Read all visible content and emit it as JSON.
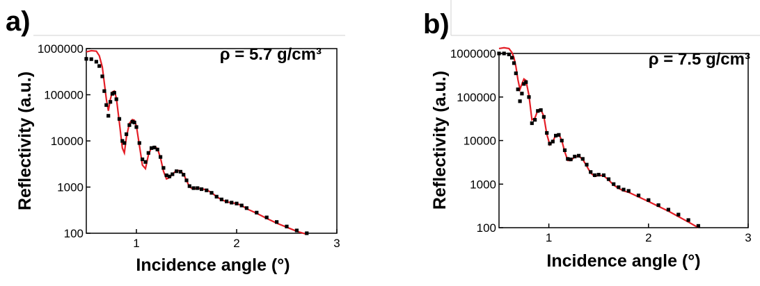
{
  "chart_data": [
    {
      "panel_label": "a)",
      "type": "scatter",
      "annotation": "ρ = 5.7 g/cm³",
      "xlabel": "Incidence angle (°)",
      "ylabel": "Reflectivity (a.u.)",
      "xlim": [
        0.5,
        3
      ],
      "ylim": [
        100,
        1000000
      ],
      "yscale": "log",
      "x_ticks": [
        1,
        2,
        3
      ],
      "y_ticks": [
        100,
        1000,
        10000,
        100000,
        1000000
      ],
      "x_tick_labels": [
        "1",
        "2",
        "3"
      ],
      "y_tick_labels": [
        "100",
        "1000",
        "10000",
        "100000",
        "1000000"
      ],
      "grid": false,
      "series": [
        {
          "role": "measured",
          "style": "markers",
          "color": "#000000",
          "x": [
            0.5,
            0.55,
            0.6,
            0.63,
            0.66,
            0.68,
            0.7,
            0.72,
            0.74,
            0.76,
            0.78,
            0.8,
            0.83,
            0.86,
            0.88,
            0.9,
            0.93,
            0.96,
            0.98,
            1.0,
            1.03,
            1.06,
            1.09,
            1.12,
            1.15,
            1.18,
            1.21,
            1.24,
            1.27,
            1.3,
            1.33,
            1.36,
            1.4,
            1.44,
            1.47,
            1.5,
            1.53,
            1.57,
            1.61,
            1.65,
            1.7,
            1.75,
            1.8,
            1.85,
            1.9,
            1.95,
            2.0,
            2.05,
            2.1,
            2.2,
            2.3,
            2.4,
            2.5,
            2.6,
            2.7
          ],
          "y": [
            600000,
            590000,
            520000,
            420000,
            250000,
            120000,
            60000,
            35000,
            70000,
            105000,
            110000,
            80000,
            30000,
            10000,
            9000,
            14000,
            22000,
            26000,
            25000,
            20000,
            9000,
            4000,
            3500,
            5500,
            7000,
            7200,
            6500,
            4500,
            2600,
            1800,
            1700,
            1900,
            2200,
            2150,
            1850,
            1400,
            1050,
            950,
            950,
            900,
            850,
            750,
            620,
            540,
            490,
            460,
            440,
            400,
            350,
            280,
            220,
            175,
            140,
            115,
            100
          ]
        },
        {
          "role": "fit",
          "style": "line",
          "color": "#e41e26",
          "x": [
            0.5,
            0.55,
            0.6,
            0.63,
            0.66,
            0.68,
            0.7,
            0.72,
            0.74,
            0.76,
            0.78,
            0.8,
            0.83,
            0.86,
            0.88,
            0.9,
            0.93,
            0.96,
            0.98,
            1.0,
            1.03,
            1.06,
            1.09,
            1.12,
            1.15,
            1.18,
            1.21,
            1.24,
            1.27,
            1.3,
            1.33,
            1.36,
            1.4,
            1.44,
            1.47,
            1.5,
            1.53,
            1.57,
            1.61,
            1.65,
            1.7,
            1.75,
            1.8,
            1.85,
            1.9,
            1.95,
            2.0,
            2.05,
            2.1,
            2.2,
            2.3,
            2.4,
            2.5,
            2.6,
            2.7
          ],
          "y": [
            850000,
            900000,
            880000,
            700000,
            400000,
            180000,
            80000,
            45000,
            80000,
            115000,
            120000,
            85000,
            25000,
            7000,
            5500,
            12000,
            24000,
            29000,
            28000,
            21000,
            8000,
            3000,
            2500,
            5000,
            7200,
            7600,
            6800,
            4300,
            2200,
            1500,
            1600,
            1900,
            2300,
            2250,
            1900,
            1400,
            1000,
            900,
            950,
            920,
            870,
            760,
            620,
            530,
            480,
            455,
            440,
            400,
            340,
            270,
            210,
            165,
            135,
            110,
            95
          ]
        }
      ]
    },
    {
      "panel_label": "b)",
      "type": "scatter",
      "annotation": "ρ = 7.5 g/cm³",
      "xlabel": "Incidence angle (°)",
      "ylabel": "Reflectivity (a.u.)",
      "xlim": [
        0.5,
        3
      ],
      "ylim": [
        100,
        1000000
      ],
      "yscale": "log",
      "x_ticks": [
        1,
        2,
        3
      ],
      "y_ticks": [
        100,
        1000,
        10000,
        100000,
        1000000
      ],
      "x_tick_labels": [
        "1",
        "2",
        "3"
      ],
      "y_tick_labels": [
        "100",
        "1000",
        "10000",
        "100000",
        "1000000"
      ],
      "grid": false,
      "series": [
        {
          "role": "measured",
          "style": "markers",
          "color": "#000000",
          "x": [
            0.5,
            0.55,
            0.6,
            0.63,
            0.65,
            0.67,
            0.69,
            0.71,
            0.73,
            0.75,
            0.77,
            0.8,
            0.83,
            0.86,
            0.89,
            0.92,
            0.95,
            0.98,
            1.01,
            1.04,
            1.07,
            1.1,
            1.13,
            1.16,
            1.19,
            1.22,
            1.26,
            1.3,
            1.34,
            1.38,
            1.42,
            1.46,
            1.5,
            1.55,
            1.6,
            1.65,
            1.7,
            1.75,
            1.8,
            1.9,
            2.0,
            2.1,
            2.2,
            2.3,
            2.4,
            2.5
          ],
          "y": [
            1000000,
            1000000,
            950000,
            800000,
            600000,
            350000,
            150000,
            80000,
            120000,
            200000,
            220000,
            100000,
            25000,
            30000,
            48000,
            50000,
            35000,
            15000,
            8500,
            9500,
            13000,
            13500,
            10000,
            6000,
            3800,
            3700,
            4300,
            4500,
            3800,
            2800,
            1900,
            1600,
            1650,
            1600,
            1300,
            1000,
            850,
            750,
            700,
            550,
            430,
            330,
            260,
            200,
            150,
            110
          ]
        },
        {
          "role": "fit",
          "style": "line",
          "color": "#e41e26",
          "x": [
            0.5,
            0.55,
            0.6,
            0.63,
            0.65,
            0.67,
            0.69,
            0.71,
            0.73,
            0.75,
            0.77,
            0.8,
            0.83,
            0.86,
            0.89,
            0.92,
            0.95,
            0.98,
            1.01,
            1.04,
            1.07,
            1.1,
            1.13,
            1.16,
            1.19,
            1.22,
            1.26,
            1.3,
            1.34,
            1.38,
            1.42,
            1.46,
            1.5,
            1.55,
            1.6,
            1.65,
            1.7,
            1.75,
            1.8,
            1.9,
            2.0,
            2.1,
            2.2,
            2.3,
            2.4,
            2.5
          ],
          "y": [
            1300000,
            1350000,
            1300000,
            1050000,
            800000,
            500000,
            250000,
            150000,
            200000,
            260000,
            240000,
            110000,
            30000,
            33000,
            50000,
            52000,
            36000,
            14000,
            8000,
            9500,
            13500,
            14000,
            10000,
            5500,
            3500,
            3500,
            4200,
            4400,
            3700,
            2600,
            1800,
            1500,
            1600,
            1550,
            1250,
            950,
            800,
            700,
            650,
            510,
            400,
            310,
            240,
            180,
            135,
            100
          ]
        }
      ]
    }
  ]
}
